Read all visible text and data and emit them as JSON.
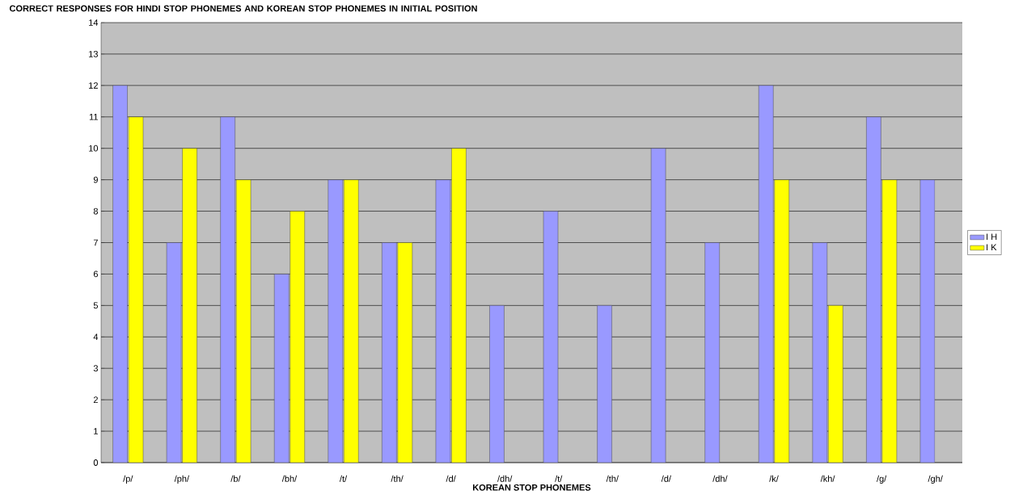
{
  "chart_data": {
    "type": "bar",
    "title": "CORRECT RESPONSES FOR HINDI STOP PHONEMES AND KOREAN STOP PHONEMES IN INITIAL POSITION",
    "xlabel": "KOREAN STOP PHONEMES",
    "categories": [
      "/p/",
      "/ph/",
      "/b/",
      "/bh/",
      "/t/",
      "/th/",
      "/d/",
      "/dh/",
      "/t/",
      "/th/",
      "/d/",
      "/dh/",
      "/k/",
      "/kh/",
      "/g/",
      "/gh/"
    ],
    "series": [
      {
        "name": "I H",
        "color": "#9999ff",
        "values": [
          12,
          7,
          11,
          6,
          9,
          7,
          9,
          5,
          8,
          5,
          10,
          7,
          12,
          7,
          11,
          9
        ]
      },
      {
        "name": "I K",
        "color": "#ffff00",
        "values": [
          11,
          10,
          9,
          8,
          9,
          7,
          10,
          null,
          null,
          null,
          null,
          null,
          9,
          5,
          9,
          null
        ]
      }
    ],
    "ylim": [
      0,
      14
    ],
    "yticks": [
      0,
      1,
      2,
      3,
      4,
      5,
      6,
      7,
      8,
      9,
      10,
      11,
      12,
      13,
      14
    ],
    "grid": "y",
    "legend": "right"
  }
}
